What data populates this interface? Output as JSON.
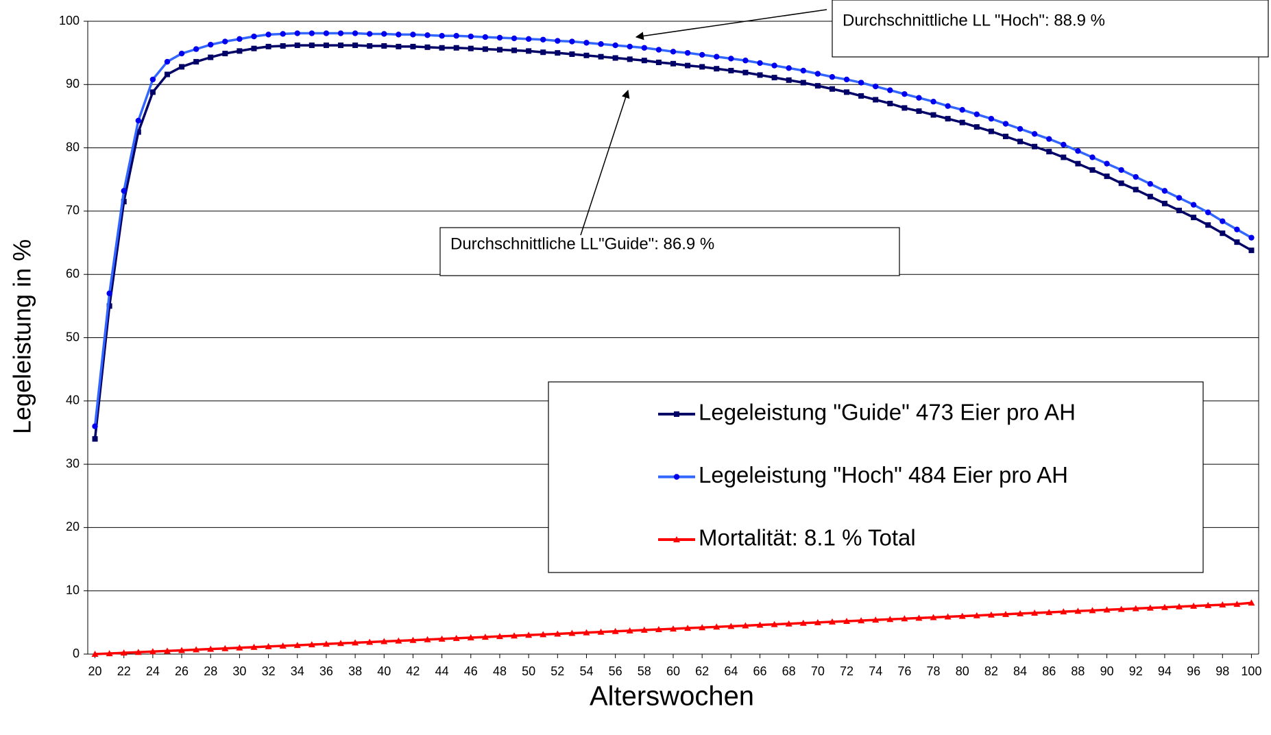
{
  "chart_data": {
    "type": "line",
    "x_label": "Alterswochen",
    "y_label": "Legeleistung in %",
    "x": [
      20,
      21,
      22,
      23,
      24,
      25,
      26,
      27,
      28,
      29,
      30,
      31,
      32,
      33,
      34,
      35,
      36,
      37,
      38,
      39,
      40,
      41,
      42,
      43,
      44,
      45,
      46,
      47,
      48,
      49,
      50,
      51,
      52,
      53,
      54,
      55,
      56,
      57,
      58,
      59,
      60,
      61,
      62,
      63,
      64,
      65,
      66,
      67,
      68,
      69,
      70,
      71,
      72,
      73,
      74,
      75,
      76,
      77,
      78,
      79,
      80,
      81,
      82,
      83,
      84,
      85,
      86,
      87,
      88,
      89,
      90,
      91,
      92,
      93,
      94,
      95,
      96,
      97,
      98,
      99,
      100
    ],
    "series": [
      {
        "name": "Legeleistung \"Guide\" 473 Eier pro AH",
        "color": "#000066",
        "marker": "square",
        "values": [
          34,
          55,
          71.5,
          82.5,
          88.8,
          91.6,
          92.8,
          93.6,
          94.3,
          94.9,
          95.3,
          95.7,
          96.0,
          96.1,
          96.2,
          96.2,
          96.2,
          96.2,
          96.2,
          96.1,
          96.1,
          96.0,
          96.0,
          95.9,
          95.8,
          95.8,
          95.7,
          95.6,
          95.5,
          95.4,
          95.3,
          95.1,
          95.0,
          94.8,
          94.6,
          94.4,
          94.2,
          94.0,
          93.8,
          93.5,
          93.3,
          93.0,
          92.8,
          92.5,
          92.2,
          91.9,
          91.5,
          91.1,
          90.7,
          90.3,
          89.8,
          89.3,
          88.8,
          88.2,
          87.6,
          87.0,
          86.3,
          85.8,
          85.2,
          84.6,
          84.0,
          83.3,
          82.6,
          81.8,
          81.0,
          80.2,
          79.4,
          78.5,
          77.5,
          76.5,
          75.5,
          74.4,
          73.4,
          72.3,
          71.2,
          70.1,
          69.0,
          67.8,
          66.5,
          65.1,
          63.8
        ]
      },
      {
        "name": "Legeleistung \"Hoch\" 484 Eier pro AH",
        "color": "#3366ff",
        "marker": "circle",
        "values": [
          36,
          57,
          73.2,
          84.3,
          90.8,
          93.6,
          94.9,
          95.6,
          96.3,
          96.8,
          97.2,
          97.6,
          97.9,
          98.0,
          98.1,
          98.1,
          98.1,
          98.1,
          98.1,
          98.0,
          98.0,
          97.9,
          97.9,
          97.8,
          97.7,
          97.7,
          97.6,
          97.5,
          97.4,
          97.3,
          97.2,
          97.1,
          96.9,
          96.8,
          96.6,
          96.4,
          96.2,
          96.0,
          95.8,
          95.5,
          95.2,
          95.0,
          94.7,
          94.4,
          94.1,
          93.8,
          93.4,
          93.0,
          92.6,
          92.2,
          91.7,
          91.2,
          90.8,
          90.3,
          89.7,
          89.1,
          88.5,
          87.9,
          87.3,
          86.6,
          86.0,
          85.3,
          84.6,
          83.8,
          83.0,
          82.2,
          81.4,
          80.5,
          79.5,
          78.5,
          77.5,
          76.5,
          75.4,
          74.3,
          73.2,
          72.1,
          71.0,
          69.8,
          68.4,
          67.1,
          65.8
        ]
      },
      {
        "name": "Mortalität: 8.1 % Total",
        "color": "#ff0000",
        "marker": "triangle",
        "values": [
          0,
          0.1,
          0.2,
          0.3,
          0.4,
          0.5,
          0.6,
          0.7,
          0.8,
          0.9,
          1.0,
          1.1,
          1.2,
          1.3,
          1.4,
          1.5,
          1.6,
          1.7,
          1.8,
          1.9,
          2.0,
          2.1,
          2.2,
          2.3,
          2.4,
          2.5,
          2.6,
          2.7,
          2.8,
          2.9,
          3.0,
          3.1,
          3.2,
          3.3,
          3.4,
          3.5,
          3.6,
          3.7,
          3.8,
          3.9,
          4.0,
          4.1,
          4.2,
          4.3,
          4.4,
          4.5,
          4.6,
          4.7,
          4.8,
          4.9,
          5.0,
          5.1,
          5.2,
          5.3,
          5.4,
          5.5,
          5.6,
          5.7,
          5.8,
          5.9,
          6.0,
          6.1,
          6.2,
          6.3,
          6.4,
          6.5,
          6.6,
          6.7,
          6.8,
          6.9,
          7.0,
          7.1,
          7.2,
          7.3,
          7.4,
          7.5,
          7.6,
          7.7,
          7.8,
          7.9,
          8.1
        ]
      }
    ],
    "annotations": [
      {
        "text": "Durchschnittliche LL \"Hoch\":  88.9 %"
      },
      {
        "text": "Durchschnittliche LL\"Guide\": 86.9 %"
      }
    ],
    "xlim": [
      19.5,
      100.5
    ],
    "xticks": [
      20,
      22,
      24,
      26,
      28,
      30,
      32,
      34,
      36,
      38,
      40,
      42,
      44,
      46,
      48,
      50,
      52,
      54,
      56,
      58,
      60,
      62,
      64,
      66,
      68,
      70,
      72,
      74,
      76,
      78,
      80,
      82,
      84,
      86,
      88,
      90,
      92,
      94,
      96,
      98,
      100
    ],
    "ylim": [
      0,
      100
    ],
    "yticks": [
      0,
      10,
      20,
      30,
      40,
      50,
      60,
      70,
      80,
      90,
      100
    ],
    "grid": true
  }
}
